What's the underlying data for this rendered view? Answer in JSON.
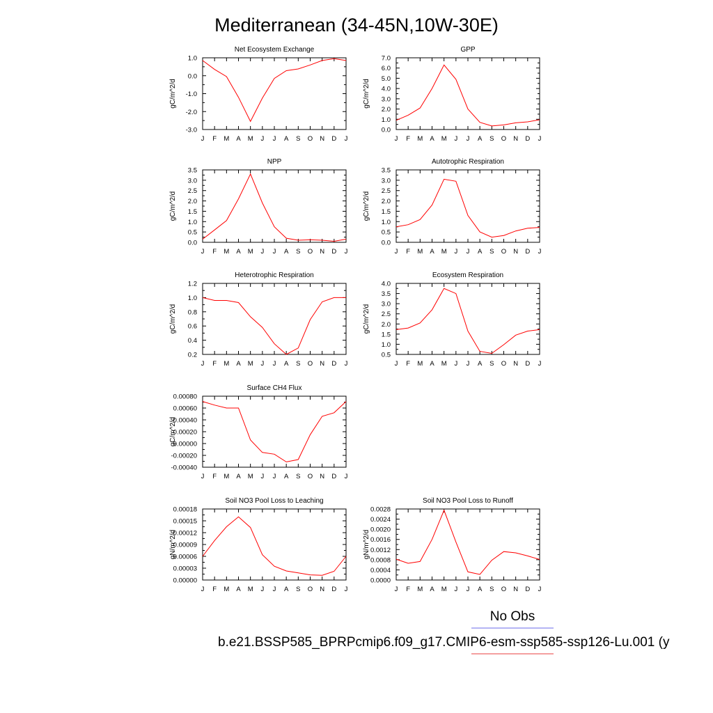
{
  "figure": {
    "title": "Mediterranean (34-45N,10W-30E)",
    "legend": {
      "obs_label": "No Obs",
      "model_label": "b.e21.BSSP585_BPRPcmip6.f09_g17.CMIP6-esm-ssp585-ssp126-Lu.001 (y",
      "obs_color": "#8888ee",
      "model_color": "#ee6666"
    }
  },
  "chart_data": [
    {
      "type": "line",
      "title": "Net Ecosystem Exchange",
      "ylabel": "gC/m^2/d",
      "x": [
        "J",
        "F",
        "M",
        "A",
        "M",
        "J",
        "J",
        "A",
        "S",
        "O",
        "N",
        "D",
        "J"
      ],
      "ylim": [
        -3.0,
        1.0
      ],
      "yticks": [
        "1.0",
        "0.0",
        "-1.0",
        "-2.0",
        "-3.0"
      ],
      "series": [
        {
          "values": [
            0.85,
            0.35,
            -0.05,
            -1.2,
            -2.55,
            -1.25,
            -0.15,
            0.28,
            0.38,
            0.6,
            0.85,
            0.95,
            0.85
          ],
          "color": "#ff0000"
        }
      ]
    },
    {
      "type": "line",
      "title": "GPP",
      "ylabel": "gC/m^2/d",
      "x": [
        "J",
        "F",
        "M",
        "A",
        "M",
        "J",
        "J",
        "A",
        "S",
        "O",
        "N",
        "D",
        "J"
      ],
      "ylim": [
        0.0,
        7.0
      ],
      "yticks": [
        "7.0",
        "6.0",
        "5.0",
        "4.0",
        "3.0",
        "2.0",
        "1.0",
        "0.0"
      ],
      "series": [
        {
          "values": [
            0.9,
            1.4,
            2.1,
            4.0,
            6.3,
            4.9,
            2.0,
            0.7,
            0.35,
            0.45,
            0.65,
            0.75,
            0.95
          ],
          "color": "#ff0000"
        }
      ]
    },
    {
      "type": "line",
      "title": "NPP",
      "ylabel": "gC/m^2/d",
      "x": [
        "J",
        "F",
        "M",
        "A",
        "M",
        "J",
        "J",
        "A",
        "S",
        "O",
        "N",
        "D",
        "J"
      ],
      "ylim": [
        0.0,
        3.5
      ],
      "yticks": [
        "3.5",
        "3.0",
        "2.5",
        "2.0",
        "1.5",
        "1.0",
        "0.5",
        "0.0"
      ],
      "series": [
        {
          "values": [
            0.15,
            0.6,
            1.05,
            2.1,
            3.3,
            1.9,
            0.75,
            0.2,
            0.1,
            0.12,
            0.1,
            0.05,
            0.15
          ],
          "color": "#ff0000"
        }
      ]
    },
    {
      "type": "line",
      "title": "Autotrophic Respiration",
      "ylabel": "gC/m^2/d",
      "x": [
        "J",
        "F",
        "M",
        "A",
        "M",
        "J",
        "J",
        "A",
        "S",
        "O",
        "N",
        "D",
        "J"
      ],
      "ylim": [
        0.0,
        3.5
      ],
      "yticks": [
        "3.5",
        "3.0",
        "2.5",
        "2.0",
        "1.5",
        "1.0",
        "0.5",
        "0.0"
      ],
      "series": [
        {
          "values": [
            0.75,
            0.85,
            1.1,
            1.8,
            3.05,
            2.95,
            1.3,
            0.5,
            0.25,
            0.33,
            0.55,
            0.68,
            0.72
          ],
          "color": "#ff0000"
        }
      ]
    },
    {
      "type": "line",
      "title": "Heterotrophic Respiration",
      "ylabel": "gC/m^2/d",
      "x": [
        "J",
        "F",
        "M",
        "A",
        "M",
        "J",
        "J",
        "A",
        "S",
        "O",
        "N",
        "D",
        "J"
      ],
      "ylim": [
        0.2,
        1.2
      ],
      "yticks": [
        "1.2",
        "1.0",
        "0.8",
        "0.6",
        "0.4",
        "0.2"
      ],
      "series": [
        {
          "values": [
            1.0,
            0.96,
            0.96,
            0.93,
            0.73,
            0.58,
            0.35,
            0.2,
            0.29,
            0.69,
            0.94,
            1.0,
            1.0
          ],
          "color": "#ff0000"
        }
      ]
    },
    {
      "type": "line",
      "title": "Ecosystem Respiration",
      "ylabel": "gC/m^2/d",
      "x": [
        "J",
        "F",
        "M",
        "A",
        "M",
        "J",
        "J",
        "A",
        "S",
        "O",
        "N",
        "D",
        "J"
      ],
      "ylim": [
        0.5,
        4.0
      ],
      "yticks": [
        "4.0",
        "3.5",
        "3.0",
        "2.5",
        "2.0",
        "1.5",
        "1.0",
        "0.5"
      ],
      "series": [
        {
          "values": [
            1.72,
            1.8,
            2.05,
            2.7,
            3.75,
            3.5,
            1.65,
            0.65,
            0.55,
            0.98,
            1.45,
            1.65,
            1.72
          ],
          "color": "#ff0000"
        }
      ]
    },
    {
      "type": "line",
      "title": "Surface CH4 Flux",
      "ylabel": "gC/m^2/d",
      "x": [
        "J",
        "F",
        "M",
        "A",
        "M",
        "J",
        "J",
        "A",
        "S",
        "O",
        "N",
        "D",
        "J"
      ],
      "ylim": [
        -0.0004,
        0.0008
      ],
      "yticks": [
        "0.00080",
        "0.00060",
        "0.00040",
        "0.00020",
        "0.00000",
        "-0.00020",
        "-0.00040"
      ],
      "series": [
        {
          "values": [
            0.00071,
            0.00065,
            0.0006,
            0.0006,
            6e-05,
            -0.00015,
            -0.00018,
            -0.00031,
            -0.00027,
            0.00015,
            0.00046,
            0.00052,
            0.00071
          ],
          "color": "#ff0000"
        }
      ]
    },
    {
      "type": "line",
      "title": "Soil NO3 Pool Loss to Leaching",
      "ylabel": "gN/m^2/d",
      "x": [
        "J",
        "F",
        "M",
        "A",
        "M",
        "J",
        "J",
        "A",
        "S",
        "O",
        "N",
        "D",
        "J"
      ],
      "ylim": [
        0.0,
        0.00018
      ],
      "yticks": [
        "0.00018",
        "0.00015",
        "0.00012",
        "0.00009",
        "0.00006",
        "0.00003",
        "0.00000"
      ],
      "series": [
        {
          "values": [
            6e-05,
            0.0001,
            0.000135,
            0.00016,
            0.000133,
            6.4e-05,
            3.5e-05,
            2.3e-05,
            1.8e-05,
            1.3e-05,
            1.2e-05,
            2.2e-05,
            6e-05
          ],
          "color": "#ff0000"
        }
      ]
    },
    {
      "type": "line",
      "title": "Soil NO3 Pool Loss to Runoff",
      "ylabel": "gN/m^2/d",
      "x": [
        "J",
        "F",
        "M",
        "A",
        "M",
        "J",
        "J",
        "A",
        "S",
        "O",
        "N",
        "D",
        "J"
      ],
      "ylim": [
        0.0,
        0.0028
      ],
      "yticks": [
        "0.0028",
        "0.0024",
        "0.0020",
        "0.0016",
        "0.0012",
        "0.0008",
        "0.0004",
        "0.0000"
      ],
      "series": [
        {
          "values": [
            0.00082,
            0.00066,
            0.00073,
            0.0016,
            0.00275,
            0.0015,
            0.00032,
            0.00022,
            0.00078,
            0.00112,
            0.00107,
            0.00095,
            0.00081
          ],
          "color": "#ff0000"
        }
      ]
    }
  ]
}
